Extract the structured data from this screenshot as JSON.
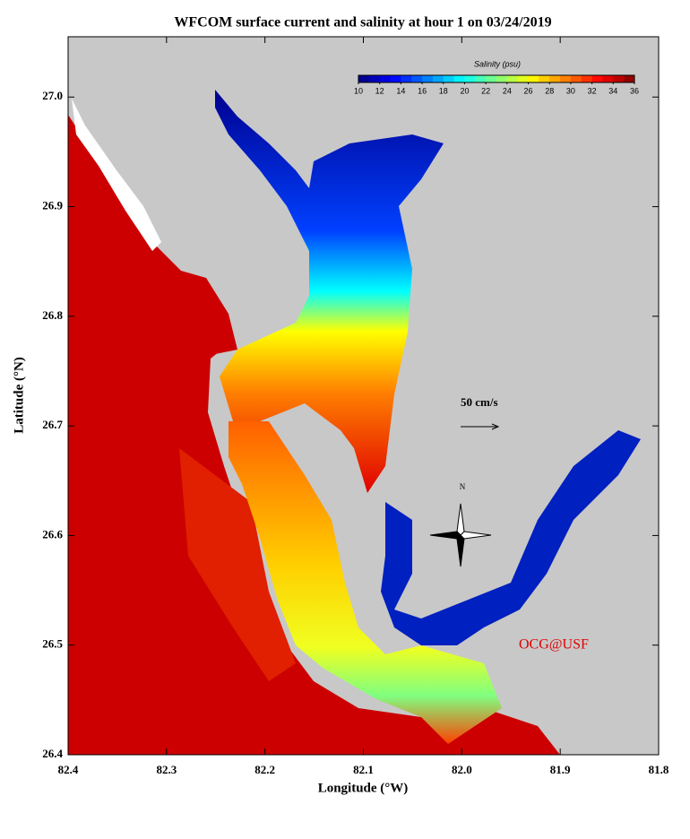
{
  "title": "WFCOM surface current and salinity at hour 1 on 03/24/2019",
  "x_axis": {
    "label": "Longitude (°W)",
    "lim": [
      82.4,
      81.8
    ],
    "ticks": [
      82.4,
      82.3,
      82.2,
      82.1,
      {
        "value": 82,
        "label": "82.0"
      },
      81.9,
      81.8
    ]
  },
  "y_axis": {
    "label": "Latitude (°N)",
    "lim": [
      26.4,
      27.055
    ],
    "ticks": [
      26.4,
      26.5,
      26.6,
      26.7,
      26.8,
      26.9,
      {
        "value": 27,
        "label": "27.0"
      }
    ]
  },
  "colorbar": {
    "title": "Salinity (psu)",
    "colormap": "jet",
    "lim": [
      10,
      36
    ],
    "ticks": [
      10,
      12,
      14,
      16,
      18,
      20,
      22,
      24,
      26,
      28,
      30,
      32,
      34,
      36
    ]
  },
  "annotations": {
    "scale": "50 cm/s",
    "north": "N",
    "credit": "OCG@USF"
  }
}
